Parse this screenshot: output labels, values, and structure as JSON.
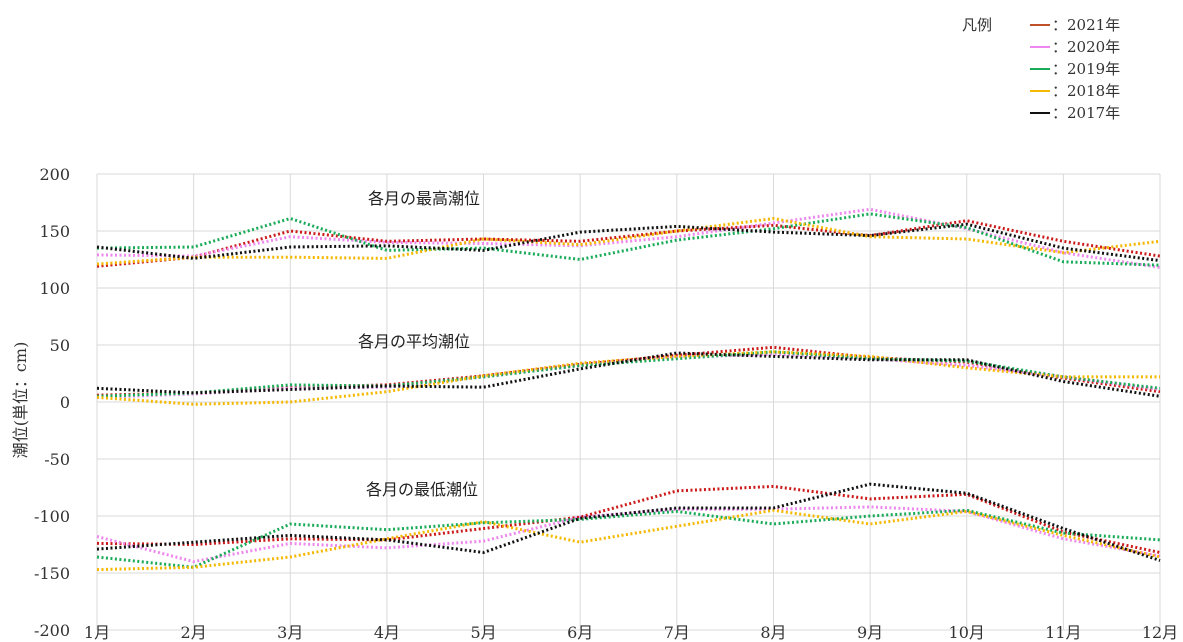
{
  "chart_data": {
    "type": "line",
    "ylabel": "潮位(単位：cm)",
    "ylim": [
      -200,
      200
    ],
    "yticks": [
      200,
      150,
      100,
      50,
      0,
      -50,
      -100,
      -150,
      -200
    ],
    "categories": [
      "1月",
      "2月",
      "3月",
      "4月",
      "5月",
      "6月",
      "7月",
      "8月",
      "9月",
      "10月",
      "11月",
      "12月"
    ],
    "grid": true,
    "legend": {
      "placement": "top-right",
      "title": "凡例",
      "entries": [
        {
          "label": "：2021年",
          "color": "#c0502a"
        },
        {
          "label": "：2020年",
          "color": "#ee88ee"
        },
        {
          "label": "：2019年",
          "color": "#1aab58"
        },
        {
          "label": "：2018年",
          "color": "#f5b800"
        },
        {
          "label": "：2017年",
          "color": "#111111"
        }
      ]
    },
    "annotations": [
      {
        "text": "各月の最高潮位",
        "y": 176
      },
      {
        "text": "各月の平均潮位",
        "y": 52
      },
      {
        "text": "各月の最低潮位",
        "y": -76
      }
    ],
    "series": [
      {
        "name": "2021年 最高",
        "color": "#cc1a1a",
        "values": [
          119,
          127,
          150,
          141,
          143,
          141,
          150,
          155,
          146,
          159,
          141,
          128
        ]
      },
      {
        "name": "2020年 最高",
        "color": "#ee88ee",
        "values": [
          129,
          128,
          145,
          140,
          139,
          137,
          145,
          157,
          169,
          152,
          131,
          118
        ]
      },
      {
        "name": "2019年 最高",
        "color": "#1aab58",
        "values": [
          135,
          136,
          161,
          133,
          135,
          125,
          142,
          152,
          165,
          153,
          123,
          120
        ]
      },
      {
        "name": "2018年 最高",
        "color": "#f5b800",
        "values": [
          121,
          127,
          127,
          126,
          143,
          138,
          150,
          161,
          145,
          143,
          131,
          141
        ]
      },
      {
        "name": "2017年 最高",
        "color": "#111111",
        "values": [
          136,
          126,
          136,
          137,
          133,
          149,
          154,
          149,
          146,
          156,
          135,
          124
        ]
      },
      {
        "name": "2021年 平均",
        "color": "#cc1a1a",
        "values": [
          6,
          8,
          13,
          15,
          23,
          33,
          41,
          48,
          39,
          35,
          21,
          9
        ]
      },
      {
        "name": "2020年 平均",
        "color": "#ee88ee",
        "values": [
          4,
          7,
          12,
          13,
          22,
          32,
          39,
          42,
          38,
          32,
          22,
          11
        ]
      },
      {
        "name": "2019年 平均",
        "color": "#1aab58",
        "values": [
          5,
          8,
          15,
          14,
          22,
          32,
          38,
          44,
          38,
          36,
          22,
          12
        ]
      },
      {
        "name": "2018年 平均",
        "color": "#f5b800",
        "values": [
          4,
          -2,
          0,
          9,
          23,
          34,
          40,
          44,
          40,
          30,
          22,
          22
        ]
      },
      {
        "name": "2017年 平均",
        "color": "#111111",
        "values": [
          12,
          8,
          11,
          14,
          13,
          29,
          43,
          40,
          37,
          37,
          18,
          5
        ]
      },
      {
        "name": "2021年 最低",
        "color": "#cc1a1a",
        "values": [
          -124,
          -125,
          -120,
          -121,
          -111,
          -101,
          -78,
          -74,
          -85,
          -81,
          -114,
          -132
        ]
      },
      {
        "name": "2020年 最低",
        "color": "#ee88ee",
        "values": [
          -118,
          -140,
          -124,
          -128,
          -122,
          -101,
          -94,
          -94,
          -92,
          -96,
          -120,
          -135
        ]
      },
      {
        "name": "2019年 最低",
        "color": "#1aab58",
        "values": [
          -136,
          -145,
          -107,
          -112,
          -106,
          -103,
          -96,
          -107,
          -100,
          -95,
          -115,
          -121
        ]
      },
      {
        "name": "2018年 最低",
        "color": "#f5b800",
        "values": [
          -147,
          -145,
          -136,
          -120,
          -105,
          -123,
          -109,
          -95,
          -107,
          -96,
          -117,
          -136
        ]
      },
      {
        "name": "2017年 最低",
        "color": "#111111",
        "values": [
          -129,
          -123,
          -117,
          -121,
          -132,
          -102,
          -93,
          -93,
          -72,
          -80,
          -111,
          -139
        ]
      }
    ]
  }
}
